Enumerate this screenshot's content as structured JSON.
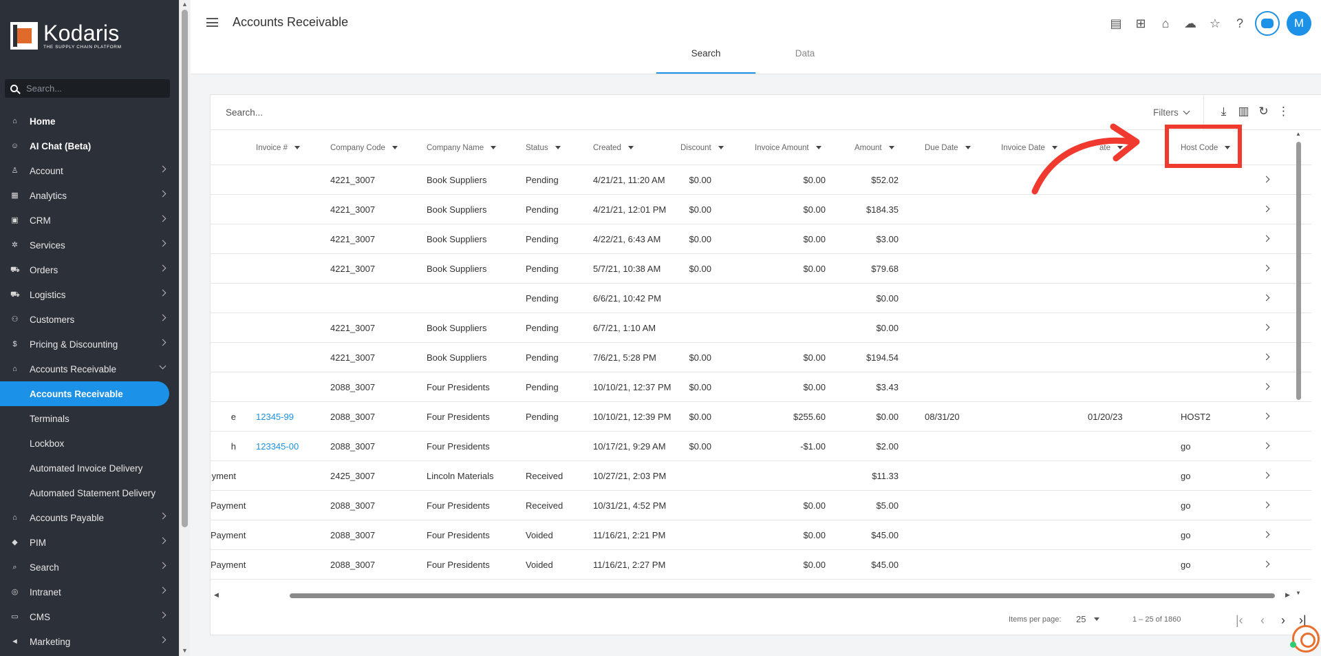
{
  "brand": {
    "name": "Kodaris",
    "tagline": "THE SUPPLY CHAIN PLATFORM"
  },
  "sidebar": {
    "search_placeholder": "Search...",
    "items": [
      {
        "label": "Home",
        "icon": "home-icon",
        "bold": true
      },
      {
        "label": "AI Chat (Beta)",
        "icon": "robot-icon",
        "bold": true
      },
      {
        "label": "Account",
        "icon": "person-icon",
        "chevron": true
      },
      {
        "label": "Analytics",
        "icon": "chart-icon",
        "chevron": true
      },
      {
        "label": "CRM",
        "icon": "contact-card-icon",
        "chevron": true
      },
      {
        "label": "Services",
        "icon": "gears-icon",
        "chevron": true
      },
      {
        "label": "Orders",
        "icon": "truck-icon",
        "chevron": true
      },
      {
        "label": "Logistics",
        "icon": "shipping-icon",
        "chevron": true
      },
      {
        "label": "Customers",
        "icon": "people-icon",
        "chevron": true
      },
      {
        "label": "Pricing & Discounting",
        "icon": "dollar-icon",
        "chevron": true
      },
      {
        "label": "Accounts Receivable",
        "icon": "bank-icon",
        "chevron": true,
        "expanded": true
      },
      {
        "label": "Accounts Receivable",
        "sub": true,
        "active": true
      },
      {
        "label": "Terminals",
        "sub": true
      },
      {
        "label": "Lockbox",
        "sub": true
      },
      {
        "label": "Automated Invoice Delivery",
        "sub": true
      },
      {
        "label": "Automated Statement Delivery",
        "sub": true
      },
      {
        "label": "Accounts Payable",
        "icon": "bank-icon",
        "chevron": true
      },
      {
        "label": "PIM",
        "icon": "tag-icon",
        "chevron": true
      },
      {
        "label": "Search",
        "icon": "search-icon",
        "chevron": true
      },
      {
        "label": "Intranet",
        "icon": "globe-icon",
        "chevron": true
      },
      {
        "label": "CMS",
        "icon": "monitor-icon",
        "chevron": true
      },
      {
        "label": "Marketing",
        "icon": "megaphone-icon",
        "chevron": true
      }
    ]
  },
  "header": {
    "title": "Accounts Receivable",
    "tabs": [
      "Search",
      "Data"
    ],
    "avatar_initial": "M"
  },
  "toolbar": {
    "search_placeholder": "Search...",
    "filters_label": "Filters"
  },
  "table": {
    "columns": [
      "Invoice #",
      "Company Code",
      "Company Name",
      "Status",
      "Created",
      "Discount",
      "Invoice Amount",
      "Amount",
      "Due Date",
      "Invoice Date",
      "ate",
      "Host Code"
    ],
    "rows": [
      {
        "type": "",
        "invoice": "",
        "code": "4221_3007",
        "name": "Book Suppliers",
        "status": "Pending",
        "created": "4/21/21, 11:20 AM",
        "discount": "$0.00",
        "inv_amount": "$0.00",
        "amount": "$52.02",
        "due": "",
        "inv_date": "",
        "other_date": "",
        "host": ""
      },
      {
        "type": "",
        "invoice": "",
        "code": "4221_3007",
        "name": "Book Suppliers",
        "status": "Pending",
        "created": "4/21/21, 12:01 PM",
        "discount": "$0.00",
        "inv_amount": "$0.00",
        "amount": "$184.35",
        "due": "",
        "inv_date": "",
        "other_date": "",
        "host": ""
      },
      {
        "type": "",
        "invoice": "",
        "code": "4221_3007",
        "name": "Book Suppliers",
        "status": "Pending",
        "created": "4/22/21, 6:43 AM",
        "discount": "$0.00",
        "inv_amount": "$0.00",
        "amount": "$3.00",
        "due": "",
        "inv_date": "",
        "other_date": "",
        "host": ""
      },
      {
        "type": "",
        "invoice": "",
        "code": "4221_3007",
        "name": "Book Suppliers",
        "status": "Pending",
        "created": "5/7/21, 10:38 AM",
        "discount": "$0.00",
        "inv_amount": "$0.00",
        "amount": "$79.68",
        "due": "",
        "inv_date": "",
        "other_date": "",
        "host": ""
      },
      {
        "type": "",
        "invoice": "",
        "code": "",
        "name": "",
        "status": "Pending",
        "created": "6/6/21, 10:42 PM",
        "discount": "",
        "inv_amount": "",
        "amount": "$0.00",
        "due": "",
        "inv_date": "",
        "other_date": "",
        "host": ""
      },
      {
        "type": "",
        "invoice": "",
        "code": "4221_3007",
        "name": "Book Suppliers",
        "status": "Pending",
        "created": "6/7/21, 1:10 AM",
        "discount": "",
        "inv_amount": "",
        "amount": "$0.00",
        "due": "",
        "inv_date": "",
        "other_date": "",
        "host": ""
      },
      {
        "type": "",
        "invoice": "",
        "code": "4221_3007",
        "name": "Book Suppliers",
        "status": "Pending",
        "created": "7/6/21, 5:28 PM",
        "discount": "$0.00",
        "inv_amount": "$0.00",
        "amount": "$194.54",
        "due": "",
        "inv_date": "",
        "other_date": "",
        "host": ""
      },
      {
        "type": "",
        "invoice": "",
        "code": "2088_3007",
        "name": "Four Presidents",
        "status": "Pending",
        "created": "10/10/21, 12:37 PM",
        "discount": "$0.00",
        "inv_amount": "$0.00",
        "amount": "$3.43",
        "due": "",
        "inv_date": "",
        "other_date": "",
        "host": ""
      },
      {
        "type": "e",
        "invoice": "12345-99",
        "code": "2088_3007",
        "name": "Four Presidents",
        "status": "Pending",
        "created": "10/10/21, 12:39 PM",
        "discount": "$0.00",
        "inv_amount": "$255.60",
        "amount": "$0.00",
        "due": "08/31/20",
        "inv_date": "",
        "other_date": "01/20/23",
        "host": "HOST2"
      },
      {
        "type": "h",
        "invoice": "123345-00",
        "code": "2088_3007",
        "name": "Four Presidents",
        "status": "",
        "created": "10/17/21, 9:29 AM",
        "discount": "$0.00",
        "inv_amount": "-$1.00",
        "amount": "$2.00",
        "due": "",
        "inv_date": "",
        "other_date": "",
        "host": "go"
      },
      {
        "type": "yment",
        "invoice": "",
        "code": "2425_3007",
        "name": "Lincoln Materials",
        "status": "Received",
        "created": "10/27/21, 2:03 PM",
        "discount": "",
        "inv_amount": "",
        "amount": "$11.33",
        "due": "",
        "inv_date": "",
        "other_date": "",
        "host": "go"
      },
      {
        "type": "Payment",
        "invoice": "",
        "code": "2088_3007",
        "name": "Four Presidents",
        "status": "Received",
        "created": "10/31/21, 4:52 PM",
        "discount": "",
        "inv_amount": "$0.00",
        "amount": "$5.00",
        "due": "",
        "inv_date": "",
        "other_date": "",
        "host": "go"
      },
      {
        "type": "Payment",
        "invoice": "",
        "code": "2088_3007",
        "name": "Four Presidents",
        "status": "Voided",
        "created": "11/16/21, 2:21 PM",
        "discount": "",
        "inv_amount": "$0.00",
        "amount": "$45.00",
        "due": "",
        "inv_date": "",
        "other_date": "",
        "host": "go"
      },
      {
        "type": "Payment",
        "invoice": "",
        "code": "2088_3007",
        "name": "Four Presidents",
        "status": "Voided",
        "created": "11/16/21, 2:27 PM",
        "discount": "",
        "inv_amount": "$0.00",
        "amount": "$45.00",
        "due": "",
        "inv_date": "",
        "other_date": "",
        "host": "go"
      }
    ]
  },
  "pager": {
    "items_per_page_label": "Items per page:",
    "page_size": "25",
    "range": "1 – 25 of 1860"
  },
  "colors": {
    "accent": "#1b91e8",
    "sidebar_bg": "#2c3038",
    "annotation_red": "#f03a2f"
  }
}
